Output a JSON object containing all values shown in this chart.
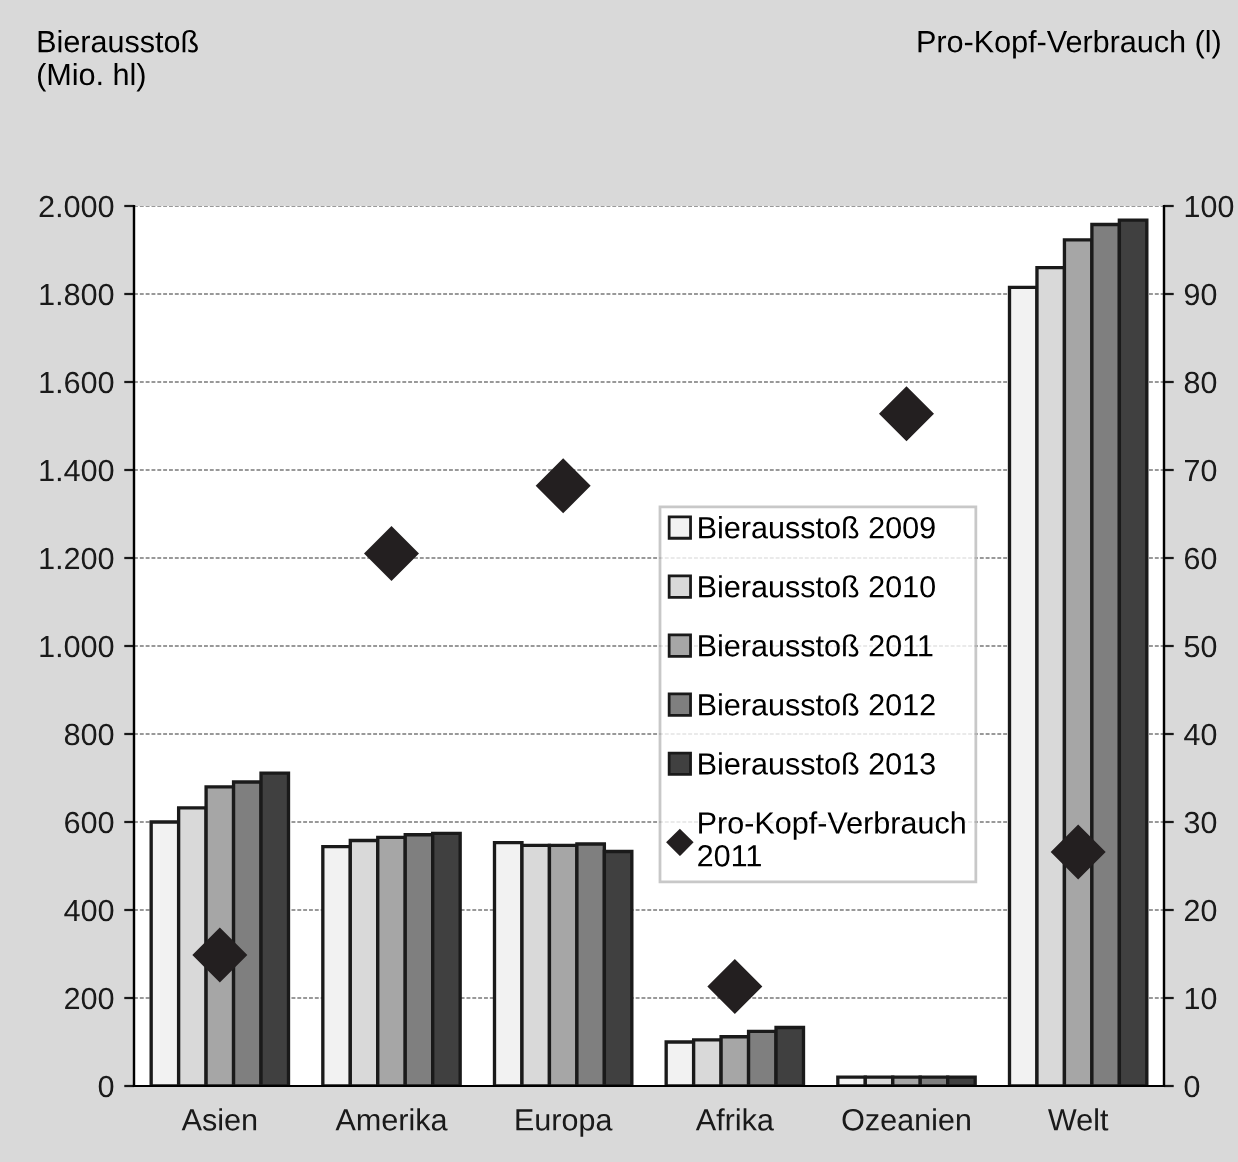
{
  "chart_data": {
    "type": "bar",
    "ylabel": "Bierausstoß\n(Mio. hl)",
    "y2label": "Pro-Kopf-Verbrauch (l)",
    "categories": [
      "Asien",
      "Amerika",
      "Europa",
      "Afrika",
      "Ozeanien",
      "Welt"
    ],
    "series": [
      {
        "name": "Bierausstoß 2009",
        "color": "#f2f2f2",
        "values": [
          600,
          544,
          553,
          100,
          20,
          1815
        ]
      },
      {
        "name": "Bierausstoß 2010",
        "color": "#d9d9d9",
        "values": [
          632,
          558,
          547,
          105,
          20,
          1860
        ]
      },
      {
        "name": "Bierausstoß 2011",
        "color": "#a6a6a6",
        "values": [
          680,
          565,
          547,
          112,
          20,
          1923
        ]
      },
      {
        "name": "Bierausstoß 2012",
        "color": "#7f7f7f",
        "values": [
          691,
          571,
          550,
          124,
          20,
          1958
        ]
      },
      {
        "name": "Bierausstoß 2013",
        "color": "#404040",
        "values": [
          711,
          574,
          533,
          133,
          20,
          1968
        ]
      },
      {
        "name": "Pro-Kopf-Verbrauch\n2011",
        "type": "scatter",
        "axis": "y2",
        "marker": "diamond",
        "color": "#231f20",
        "values": [
          14.9,
          60.5,
          68.2,
          11.3,
          76.4,
          26.6
        ]
      }
    ],
    "ylim": [
      0,
      2000
    ],
    "yticks": [
      0,
      200,
      400,
      600,
      800,
      {
        "value": 1000,
        "label": "1.000"
      },
      {
        "value": 1200,
        "label": "1.200"
      },
      {
        "value": 1400,
        "label": "1.400"
      },
      {
        "value": 1600,
        "label": "1.600"
      },
      {
        "value": 1800,
        "label": "1.800"
      },
      {
        "value": 2000,
        "label": "2.000"
      }
    ],
    "y2lim": [
      0,
      100
    ],
    "y2ticks": [
      0,
      10,
      20,
      30,
      40,
      50,
      60,
      70,
      80,
      90,
      100
    ],
    "grid": "y",
    "legend": "center"
  }
}
